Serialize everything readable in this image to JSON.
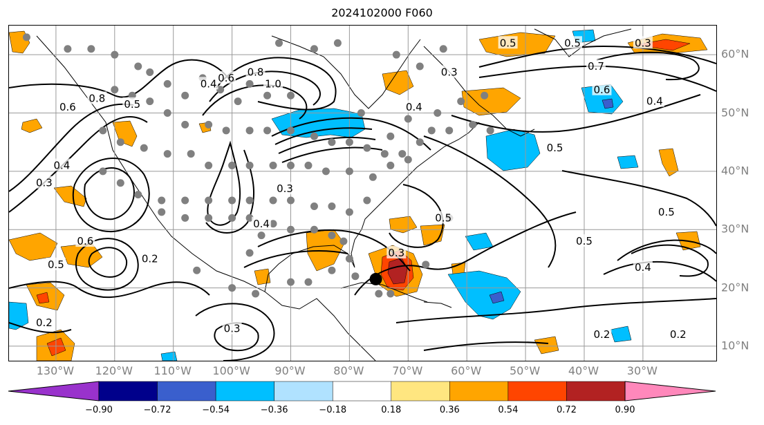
{
  "title": "2024102000 F060",
  "lon_labels": [
    {
      "text": "130°W",
      "lon": -130
    },
    {
      "text": "120°W",
      "lon": -120
    },
    {
      "text": "110°W",
      "lon": -110
    },
    {
      "text": "100°W",
      "lon": -100
    },
    {
      "text": "90°W",
      "lon": -90
    },
    {
      "text": "80°W",
      "lon": -80
    },
    {
      "text": "70°W",
      "lon": -70
    },
    {
      "text": "60°W",
      "lon": -60
    },
    {
      "text": "50°W",
      "lon": -50
    },
    {
      "text": "40°W",
      "lon": -40
    },
    {
      "text": "30°W",
      "lon": -30
    }
  ],
  "lat_labels": [
    {
      "text": "60°N",
      "lat": 60
    },
    {
      "text": "50°N",
      "lat": 50
    },
    {
      "text": "40°N",
      "lat": 40
    },
    {
      "text": "30°N",
      "lat": 30
    },
    {
      "text": "20°N",
      "lat": 20
    },
    {
      "text": "10°N",
      "lat": 10
    }
  ],
  "colorbar": {
    "labels": [
      "−0.90",
      "−0.72",
      "−0.54",
      "−0.36",
      "−0.18",
      "0.18",
      "0.36",
      "0.54",
      "0.72",
      "0.90"
    ],
    "colors": [
      "#9932cc",
      "#00008b",
      "#3a5fcd",
      "#00bfff",
      "#b0e2ff",
      "#ffffff",
      "#ffe680",
      "#ffa500",
      "#ff4500",
      "#b22222",
      "#ff88bb"
    ]
  },
  "contour_labels": [
    {
      "text": "0.8",
      "lon": -123,
      "lat": 52.5
    },
    {
      "text": "0.6",
      "lon": -128,
      "lat": 51
    },
    {
      "text": "0.5",
      "lon": -117,
      "lat": 51.5
    },
    {
      "text": "0.4",
      "lon": -104,
      "lat": 55
    },
    {
      "text": "0.6",
      "lon": -101,
      "lat": 56
    },
    {
      "text": "0.8",
      "lon": -96,
      "lat": 57
    },
    {
      "text": "1.0",
      "lon": -93,
      "lat": 55
    },
    {
      "text": "0.4",
      "lon": -69,
      "lat": 51
    },
    {
      "text": "0.3",
      "lon": -63,
      "lat": 57
    },
    {
      "text": "0.5",
      "lon": -53,
      "lat": 62
    },
    {
      "text": "0.5",
      "lon": -42,
      "lat": 62
    },
    {
      "text": "0.3",
      "lon": -30,
      "lat": 62
    },
    {
      "text": "0.7",
      "lon": -38,
      "lat": 58
    },
    {
      "text": "0.6",
      "lon": -37,
      "lat": 54
    },
    {
      "text": "0.4",
      "lon": -28,
      "lat": 52
    },
    {
      "text": "0.5",
      "lon": -45,
      "lat": 44
    },
    {
      "text": "0.3",
      "lon": -132,
      "lat": 38
    },
    {
      "text": "0.4",
      "lon": -129,
      "lat": 41
    },
    {
      "text": "0.3",
      "lon": -91,
      "lat": 37
    },
    {
      "text": "0.4",
      "lon": -95,
      "lat": 31
    },
    {
      "text": "0.5",
      "lon": -64,
      "lat": 32
    },
    {
      "text": "0.5",
      "lon": -26,
      "lat": 33
    },
    {
      "text": "0.5",
      "lon": -40,
      "lat": 28
    },
    {
      "text": "0.6",
      "lon": -125,
      "lat": 28
    },
    {
      "text": "0.5",
      "lon": -130,
      "lat": 24
    },
    {
      "text": "0.2",
      "lon": -114,
      "lat": 25
    },
    {
      "text": "0.3",
      "lon": -72,
      "lat": 26
    },
    {
      "text": "0.4",
      "lon": -30,
      "lat": 23.5
    },
    {
      "text": "0.2",
      "lon": -132,
      "lat": 14
    },
    {
      "text": "0.3",
      "lon": -100,
      "lat": 13
    },
    {
      "text": "0.2",
      "lon": -37,
      "lat": 12
    },
    {
      "text": "0.2",
      "lon": -24,
      "lat": 12
    }
  ],
  "storm_marker": {
    "lon": -75.5,
    "lat": 21.5
  }
}
